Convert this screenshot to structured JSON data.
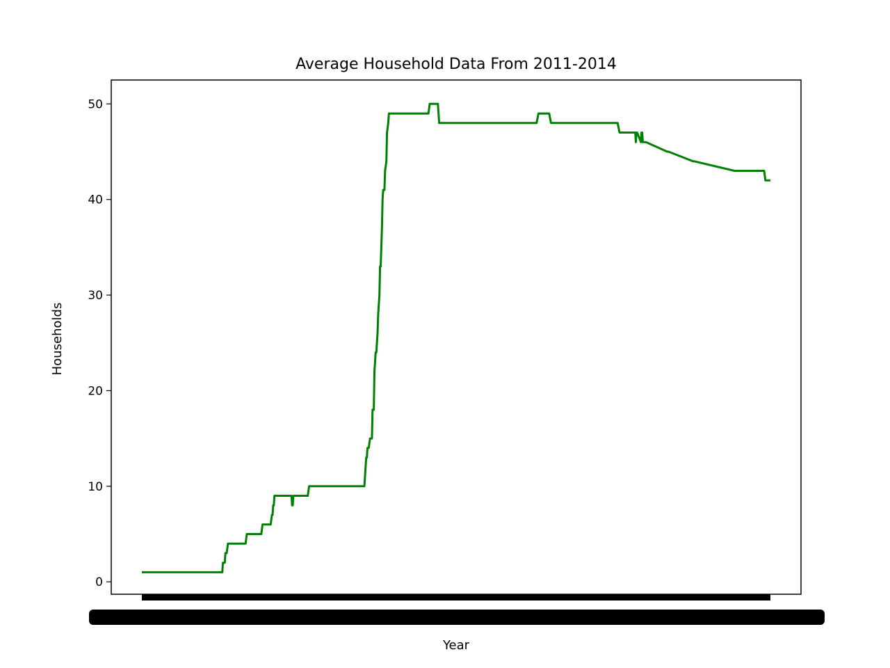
{
  "chart_data": {
    "type": "line",
    "title": "Average Household Data From 2011-2014",
    "xlabel": "Year",
    "ylabel": "Households",
    "ylim": [
      -1.3,
      52.5
    ],
    "yticks": [
      0,
      10,
      20,
      30,
      40,
      50
    ],
    "grid": false,
    "legend": "none",
    "x_tick_labels_note": "overlapping illegible labels",
    "series": [
      {
        "color": "#008000",
        "x": [
          0,
          0.128,
          0.129,
          0.132,
          0.133,
          0.135,
          0.137,
          0.165,
          0.167,
          0.19,
          0.192,
          0.205,
          0.207,
          0.208,
          0.209,
          0.21,
          0.211,
          0.212,
          0.213,
          0.214,
          0.238,
          0.239,
          0.24,
          0.241,
          0.264,
          0.266,
          0.354,
          0.356,
          0.357,
          0.358,
          0.359,
          0.361,
          0.363,
          0.366,
          0.367,
          0.369,
          0.37,
          0.372,
          0.373,
          0.375,
          0.376,
          0.378,
          0.379,
          0.38,
          0.382,
          0.383,
          0.384,
          0.386,
          0.387,
          0.389,
          0.39,
          0.392,
          0.393,
          0.395,
          0.396,
          0.398,
          0.399,
          0.401,
          0.403,
          0.456,
          0.458,
          0.471,
          0.473,
          0.628,
          0.631,
          0.648,
          0.651,
          0.757,
          0.76,
          0.785,
          0.786,
          0.787,
          0.788,
          0.794,
          0.795,
          0.796,
          0.797,
          0.8,
          0.802,
          0.836,
          0.838,
          0.877,
          0.879,
          0.943,
          0.945,
          0.99,
          0.992,
          1
        ],
        "values": [
          1,
          1,
          2,
          2,
          3,
          3,
          4,
          4,
          5,
          5,
          6,
          6,
          7,
          7,
          8,
          8,
          9,
          9,
          9,
          9,
          9,
          8,
          8,
          9,
          9,
          10,
          10,
          12,
          13,
          13,
          14,
          14,
          15,
          15,
          18,
          18,
          22,
          24,
          24,
          26,
          28,
          30,
          33,
          33,
          37,
          40,
          41,
          41,
          43,
          44,
          47,
          48,
          49,
          49,
          49,
          49,
          49,
          49,
          49,
          49,
          50,
          50,
          48,
          48,
          49,
          49,
          48,
          48,
          47,
          47,
          46,
          47,
          47,
          46,
          47,
          47,
          46,
          46,
          46,
          45,
          45,
          44,
          44,
          43,
          43,
          43,
          42,
          42
        ]
      }
    ]
  }
}
